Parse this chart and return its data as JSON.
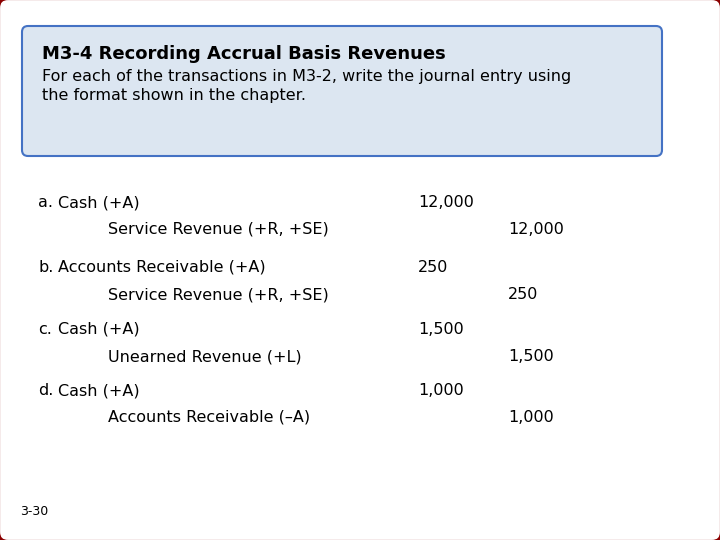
{
  "title_bold": "M3-4 Recording Accrual Basis Revenues",
  "title_sub_line1": "For each of the transactions in M3-2, write the journal entry using",
  "title_sub_line2": "the format shown in the chapter.",
  "header_box_color": "#dce6f1",
  "header_box_border": "#4472c4",
  "outer_border_color": "#8B0000",
  "background_color": "#ffffff",
  "footer_text": "3-30",
  "body_color": "#000000",
  "entries": [
    {
      "letter": "a.",
      "debit_account": "Cash (+A)",
      "credit_account": "Service Revenue (+R, +SE)",
      "debit_amount": "12,000",
      "credit_amount": "12,000"
    },
    {
      "letter": "b.",
      "debit_account": "Accounts Receivable (+A)",
      "credit_account": "Service Revenue (+R, +SE)",
      "debit_amount": "250",
      "credit_amount": "250"
    },
    {
      "letter": "c.",
      "debit_account": "Cash (+A)",
      "credit_account": "Unearned Revenue (+L)",
      "debit_amount": "1,500",
      "credit_amount": "1,500"
    },
    {
      "letter": "d.",
      "debit_account": "Cash (+A)",
      "credit_account": "Accounts Receivable (–A)",
      "debit_amount": "1,000",
      "credit_amount": "1,000"
    }
  ]
}
